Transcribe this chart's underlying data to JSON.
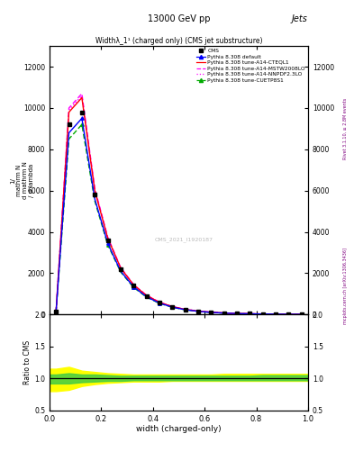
{
  "title_main": "13000 GeV pp",
  "title_right": "Jets",
  "plot_title": "Widthλ_1¹ (charged only) (CMS jet substructure)",
  "watermark": "CMS_2021_I1920187",
  "xlabel": "width (charged-only)",
  "ylabel_ratio": "Ratio to CMS",
  "right_label_top": "Rivet 3.1.10, ≥ 2.8M events",
  "right_label_bottom": "mcplots.cern.ch [arXiv:1306.3436]",
  "xlim": [
    0.0,
    1.0
  ],
  "ylim_main": [
    0,
    13000
  ],
  "ylim_ratio": [
    0.5,
    2.0
  ],
  "yticks_main": [
    0,
    2000,
    4000,
    6000,
    8000,
    10000,
    12000
  ],
  "yticks_ratio": [
    0.5,
    1.0,
    1.5,
    2.0
  ],
  "legend_entries": [
    {
      "label": "CMS",
      "color": "black",
      "marker": "s",
      "linestyle": "none"
    },
    {
      "label": "Pythia 8.308 default",
      "color": "#0000ff",
      "marker": "^",
      "linestyle": "-"
    },
    {
      "label": "Pythia 8.308 tune-A14-CTEQL1",
      "color": "#ff0000",
      "marker": "none",
      "linestyle": "-"
    },
    {
      "label": "Pythia 8.308 tune-A14-MSTW2008LO",
      "color": "#ff00ff",
      "marker": "none",
      "linestyle": "--"
    },
    {
      "label": "Pythia 8.308 tune-A14-NNPDF2.3LO",
      "color": "#ff00ff",
      "marker": "none",
      "linestyle": ":"
    },
    {
      "label": "Pythia 8.308 tune-CUETP8S1",
      "color": "#00cc00",
      "marker": "^",
      "linestyle": "--"
    }
  ],
  "cms_x": [
    0.025,
    0.075,
    0.125,
    0.175,
    0.225,
    0.275,
    0.325,
    0.375,
    0.425,
    0.475,
    0.525,
    0.575,
    0.625,
    0.675,
    0.725,
    0.775,
    0.825,
    0.875,
    0.925,
    0.975
  ],
  "cms_y": [
    150,
    9200,
    9800,
    5800,
    3600,
    2200,
    1400,
    900,
    580,
    370,
    240,
    160,
    105,
    70,
    48,
    33,
    23,
    16,
    11,
    7
  ],
  "default_x": [
    0.025,
    0.075,
    0.125,
    0.175,
    0.225,
    0.275,
    0.325,
    0.375,
    0.425,
    0.475,
    0.525,
    0.575,
    0.625,
    0.675,
    0.725,
    0.775,
    0.825,
    0.875,
    0.925,
    0.975
  ],
  "default_y": [
    120,
    8800,
    9500,
    5600,
    3450,
    2100,
    1340,
    860,
    550,
    355,
    230,
    152,
    100,
    67,
    46,
    31,
    22,
    15,
    10,
    7
  ],
  "cteql1_x": [
    0.025,
    0.075,
    0.125,
    0.175,
    0.225,
    0.275,
    0.325,
    0.375,
    0.425,
    0.475,
    0.525,
    0.575,
    0.625,
    0.675,
    0.725,
    0.775,
    0.825,
    0.875,
    0.925,
    0.975
  ],
  "cteql1_y": [
    130,
    9800,
    10500,
    6000,
    3700,
    2250,
    1430,
    920,
    590,
    380,
    245,
    163,
    107,
    72,
    49,
    33,
    23,
    16,
    11,
    7.5
  ],
  "mstw_x": [
    0.025,
    0.075,
    0.125,
    0.175,
    0.225,
    0.275,
    0.325,
    0.375,
    0.425,
    0.475,
    0.525,
    0.575,
    0.625,
    0.675,
    0.725,
    0.775,
    0.825,
    0.875,
    0.925,
    0.975
  ],
  "mstw_y": [
    125,
    10000,
    10700,
    6100,
    3750,
    2280,
    1450,
    930,
    596,
    384,
    248,
    165,
    108,
    73,
    50,
    34,
    23.5,
    16.2,
    11.2,
    7.6
  ],
  "nnpdf_x": [
    0.025,
    0.075,
    0.125,
    0.175,
    0.225,
    0.275,
    0.325,
    0.375,
    0.425,
    0.475,
    0.525,
    0.575,
    0.625,
    0.675,
    0.725,
    0.775,
    0.825,
    0.875,
    0.925,
    0.975
  ],
  "nnpdf_y": [
    127,
    9900,
    10600,
    6050,
    3720,
    2260,
    1440,
    925,
    593,
    381,
    246,
    164,
    108,
    72,
    49.5,
    33.5,
    23.2,
    16.0,
    11.1,
    7.55
  ],
  "cuetp_x": [
    0.025,
    0.075,
    0.125,
    0.175,
    0.225,
    0.275,
    0.325,
    0.375,
    0.425,
    0.475,
    0.525,
    0.575,
    0.625,
    0.675,
    0.725,
    0.775,
    0.825,
    0.875,
    0.925,
    0.975
  ],
  "cuetp_y": [
    110,
    8500,
    9200,
    5500,
    3380,
    2060,
    1310,
    840,
    538,
    347,
    224,
    149,
    98,
    65,
    45,
    30,
    21,
    14.5,
    10,
    6.8
  ],
  "ratio_x": [
    0.0,
    0.025,
    0.075,
    0.125,
    0.175,
    0.225,
    0.275,
    0.325,
    0.375,
    0.425,
    0.475,
    0.525,
    0.575,
    0.625,
    0.675,
    0.725,
    0.775,
    0.825,
    0.875,
    0.925,
    0.975,
    1.0
  ],
  "ratio_green_band_lo": [
    0.92,
    0.92,
    0.92,
    0.94,
    0.95,
    0.96,
    0.96,
    0.97,
    0.97,
    0.97,
    0.97,
    0.97,
    0.97,
    0.97,
    0.97,
    0.97,
    0.97,
    0.97,
    0.97,
    0.97,
    0.97,
    0.97
  ],
  "ratio_green_band_hi": [
    1.06,
    1.06,
    1.08,
    1.06,
    1.06,
    1.05,
    1.04,
    1.04,
    1.04,
    1.04,
    1.04,
    1.04,
    1.04,
    1.04,
    1.04,
    1.04,
    1.04,
    1.05,
    1.05,
    1.05,
    1.05,
    1.05
  ],
  "ratio_yellow_band_lo": [
    0.8,
    0.8,
    0.82,
    0.88,
    0.91,
    0.93,
    0.94,
    0.95,
    0.95,
    0.95,
    0.96,
    0.96,
    0.96,
    0.96,
    0.96,
    0.96,
    0.96,
    0.96,
    0.96,
    0.96,
    0.96,
    0.96
  ],
  "ratio_yellow_band_hi": [
    1.15,
    1.15,
    1.18,
    1.12,
    1.1,
    1.08,
    1.07,
    1.06,
    1.06,
    1.06,
    1.06,
    1.06,
    1.06,
    1.06,
    1.07,
    1.07,
    1.07,
    1.07,
    1.07,
    1.07,
    1.07,
    1.07
  ],
  "bg_color": "#ffffff",
  "fig_width": 3.93,
  "fig_height": 5.12,
  "dpi": 100
}
